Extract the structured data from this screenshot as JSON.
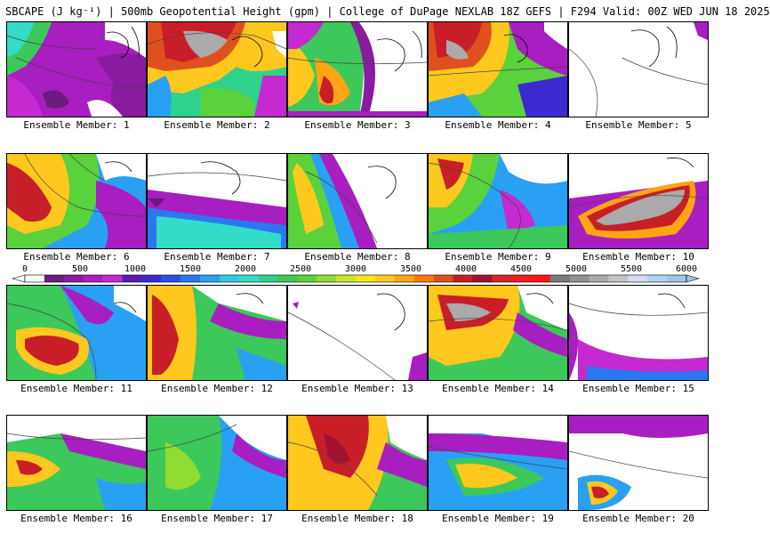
{
  "header": {
    "title": "SBCAPE (J kg⁻¹) | 500mb Geopotential Height (gpm) | College of DuPage NEXLAB 18Z GEFS | F294 Valid: 00Z WED JUN 18 2025"
  },
  "colorbar": {
    "tick_labels": [
      "0",
      "500",
      "1000",
      "1500",
      "2000",
      "2500",
      "3000",
      "3500",
      "4000",
      "4500",
      "5000",
      "5500",
      "6000"
    ],
    "tick_values": [
      0,
      500,
      1000,
      1500,
      2000,
      2500,
      3000,
      3500,
      4000,
      4500,
      5000,
      5500,
      6000
    ],
    "colors": [
      "#ffffff",
      "#6a1b7c",
      "#8a1aa0",
      "#a81ec0",
      "#c42ad0",
      "#5a1ab4",
      "#3c2ad0",
      "#2a50e0",
      "#2a78f0",
      "#2aa0f4",
      "#30c8e8",
      "#34dcc8",
      "#2ed28c",
      "#3cc85a",
      "#5ad23c",
      "#90dc32",
      "#c8e628",
      "#f5e61e",
      "#ffc81e",
      "#ffa514",
      "#ff7a0a",
      "#e0501e",
      "#c81e28",
      "#a01432",
      "#d22828",
      "#ee2020",
      "#ff1414",
      "#7a7a7a",
      "#929292",
      "#aaaaaa",
      "#c4c4c4",
      "#d4dcf0",
      "#b0d2f0",
      "#a0c4e6"
    ]
  },
  "panels": [
    {
      "label": "Ensemble Member: 1"
    },
    {
      "label": "Ensemble Member: 2"
    },
    {
      "label": "Ensemble Member: 3"
    },
    {
      "label": "Ensemble Member: 4"
    },
    {
      "label": "Ensemble Member: 5"
    },
    {
      "label": "Ensemble Member: 6"
    },
    {
      "label": "Ensemble Member: 7"
    },
    {
      "label": "Ensemble Member: 8"
    },
    {
      "label": "Ensemble Member: 9"
    },
    {
      "label": "Ensemble Member: 10"
    },
    {
      "label": "Ensemble Member: 11"
    },
    {
      "label": "Ensemble Member: 12"
    },
    {
      "label": "Ensemble Member: 13"
    },
    {
      "label": "Ensemble Member: 14"
    },
    {
      "label": "Ensemble Member: 15"
    },
    {
      "label": "Ensemble Member: 16"
    },
    {
      "label": "Ensemble Member: 17"
    },
    {
      "label": "Ensemble Member: 18"
    },
    {
      "label": "Ensemble Member: 19"
    },
    {
      "label": "Ensemble Member: 20"
    }
  ]
}
